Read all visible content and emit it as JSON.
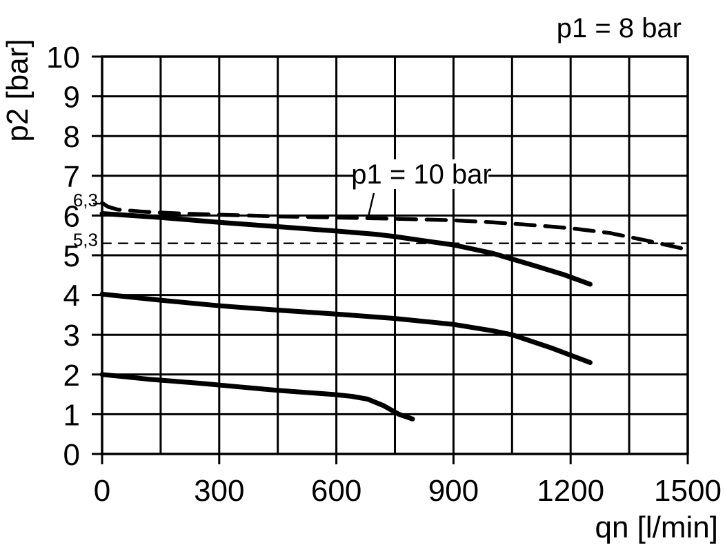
{
  "colors": {
    "ink": "#000000",
    "background": "#ffffff"
  },
  "title": "p1 = 8 bar",
  "annotation_label": "p1 = 10 bar",
  "chart_data": {
    "type": "line",
    "title": "p1 = 8 bar",
    "xlabel": "qn [l/min]",
    "ylabel": "p2 [bar]",
    "xlim": [
      0,
      1500
    ],
    "ylim": [
      0,
      10
    ],
    "x_grid_step": 150,
    "y_grid_step": 1,
    "grid": true,
    "legend": "none",
    "x_ticks": [
      {
        "value": 0,
        "label": "0"
      },
      {
        "value": 300,
        "label": "300"
      },
      {
        "value": 600,
        "label": "600"
      },
      {
        "value": 900,
        "label": "900"
      },
      {
        "value": 1200,
        "label": "1200"
      },
      {
        "value": 1500,
        "label": "1500"
      }
    ],
    "y_ticks": [
      {
        "value": 0,
        "label": "0"
      },
      {
        "value": 1,
        "label": "1"
      },
      {
        "value": 2,
        "label": "2"
      },
      {
        "value": 3,
        "label": "3"
      },
      {
        "value": 4,
        "label": "4"
      },
      {
        "value": 5,
        "label": "5"
      },
      {
        "value": 6,
        "label": "6"
      },
      {
        "value": 7,
        "label": "7"
      },
      {
        "value": 8,
        "label": "8"
      },
      {
        "value": 9,
        "label": "9"
      },
      {
        "value": 10,
        "label": "10"
      }
    ],
    "y_extra_labels": [
      {
        "value": 6.3,
        "label": "6,3",
        "tick": true
      },
      {
        "value": 5.3,
        "label": "5,3",
        "tick": false
      }
    ],
    "annotation": {
      "label": "p1 = 10 bar",
      "text_anchor_xy": [
        815,
        7.0
      ],
      "leader_from_xy": [
        695,
        6.55
      ],
      "leader_to_xy": [
        680,
        5.95
      ]
    },
    "series": [
      {
        "id": "p1-10bar",
        "name": "p1 = 10 bar supply curve",
        "style": "dashed-thick",
        "points": [
          [
            0,
            6.32
          ],
          [
            15,
            6.22
          ],
          [
            40,
            6.15
          ],
          [
            100,
            6.1
          ],
          [
            200,
            6.05
          ],
          [
            300,
            6.02
          ],
          [
            450,
            5.98
          ],
          [
            600,
            5.95
          ],
          [
            750,
            5.92
          ],
          [
            900,
            5.88
          ],
          [
            1000,
            5.83
          ],
          [
            1100,
            5.76
          ],
          [
            1200,
            5.68
          ],
          [
            1300,
            5.56
          ],
          [
            1400,
            5.36
          ],
          [
            1500,
            5.14
          ]
        ]
      },
      {
        "id": "reference-5-3",
        "name": "5,3 bar reference line",
        "style": "dashed-thin",
        "points": [
          [
            0,
            5.3
          ],
          [
            1500,
            5.3
          ]
        ]
      },
      {
        "id": "regulation-6bar",
        "name": "regulation curve set 6 bar",
        "style": "solid-thick",
        "points": [
          [
            0,
            6.05
          ],
          [
            150,
            5.95
          ],
          [
            300,
            5.83
          ],
          [
            450,
            5.72
          ],
          [
            600,
            5.61
          ],
          [
            700,
            5.53
          ],
          [
            750,
            5.47
          ],
          [
            800,
            5.4
          ],
          [
            900,
            5.26
          ],
          [
            1000,
            5.05
          ],
          [
            1100,
            4.76
          ],
          [
            1180,
            4.52
          ],
          [
            1250,
            4.27
          ]
        ]
      },
      {
        "id": "regulation-4bar",
        "name": "regulation curve set 4 bar",
        "style": "solid-thick",
        "points": [
          [
            0,
            4.02
          ],
          [
            150,
            3.87
          ],
          [
            300,
            3.73
          ],
          [
            450,
            3.62
          ],
          [
            600,
            3.52
          ],
          [
            750,
            3.41
          ],
          [
            900,
            3.26
          ],
          [
            1000,
            3.1
          ],
          [
            1050,
            3.0
          ],
          [
            1150,
            2.67
          ],
          [
            1250,
            2.3
          ]
        ]
      },
      {
        "id": "regulation-2bar",
        "name": "regulation curve set 2 bar",
        "style": "solid-thick",
        "points": [
          [
            0,
            2.0
          ],
          [
            120,
            1.88
          ],
          [
            250,
            1.78
          ],
          [
            350,
            1.69
          ],
          [
            450,
            1.6
          ],
          [
            520,
            1.55
          ],
          [
            590,
            1.5
          ],
          [
            640,
            1.45
          ],
          [
            680,
            1.38
          ],
          [
            720,
            1.22
          ],
          [
            760,
            1.0
          ],
          [
            795,
            0.88
          ]
        ]
      }
    ]
  }
}
